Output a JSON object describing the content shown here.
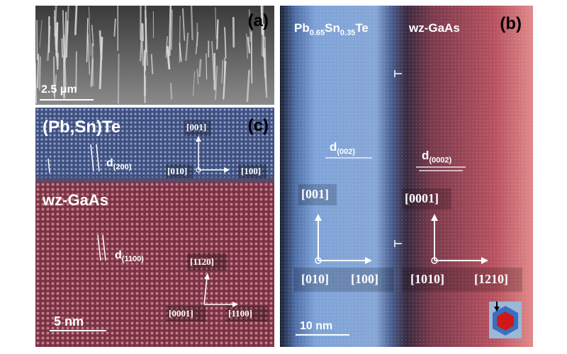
{
  "panel_a": {
    "label": "(a)",
    "scale_bar": "2.5 μm"
  },
  "panel_b": {
    "label": "(b)",
    "left_material": "Pb0.65Sn0.35Te",
    "right_material": "wz-GaAs",
    "d_left": "d(002)",
    "d_right": "d(0002)",
    "left_axes": {
      "vertical": "[001]",
      "origin": "[010]",
      "horizontal": "[100]"
    },
    "right_axes": {
      "vertical": "[0001]",
      "origin": "[1010]",
      "horizontal": "[1210]"
    },
    "scale_bar": "10 nm",
    "colors": {
      "left": "#7fa3d8",
      "right": "#c0505a",
      "edge_dark": "#1a1f30"
    }
  },
  "panel_c": {
    "label": "(c)",
    "top_material": "(Pb,Sn)Te",
    "bottom_material": "wz-GaAs",
    "d_top": "d(200)",
    "d_bottom": "d(1100)",
    "top_axes": {
      "vertical": "[001]",
      "origin": "[010]",
      "horizontal": "[100]"
    },
    "bottom_axes": {
      "vertical": "[1120]",
      "origin": "[0001]",
      "horizontal": "[1100]"
    },
    "scale_bar": "5 nm",
    "colors": {
      "top": "#4a5c8a",
      "bottom": "#8a3a4a"
    }
  }
}
